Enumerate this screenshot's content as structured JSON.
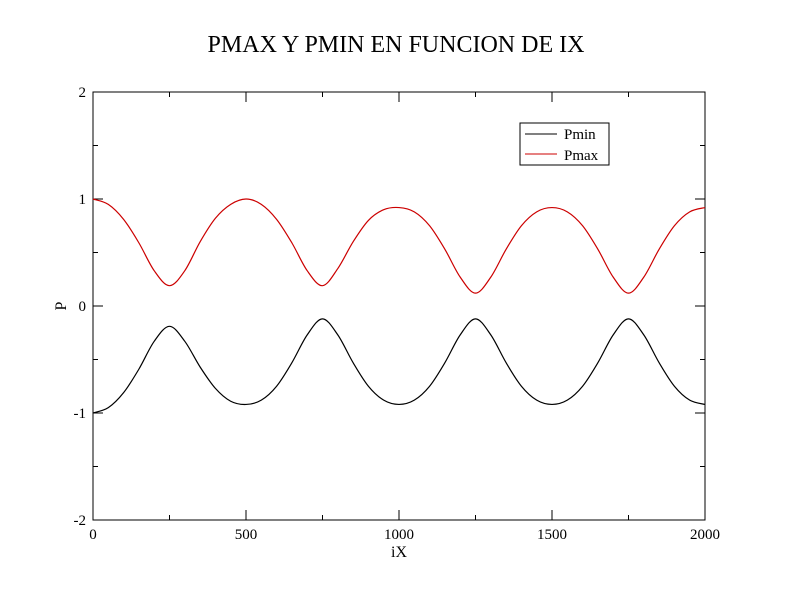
{
  "chart_data": {
    "type": "line",
    "title": "PMAX Y PMIN EN FUNCION DE IX",
    "xlabel": "iX",
    "ylabel": "P",
    "xlim": [
      0,
      2000
    ],
    "ylim": [
      -2,
      2
    ],
    "x_ticks": [
      0,
      500,
      1000,
      1500,
      2000
    ],
    "y_ticks": [
      -2,
      -1,
      0,
      1,
      2
    ],
    "x_tick_labels": [
      "0",
      "500",
      "1000",
      "1500",
      "2000"
    ],
    "y_tick_labels": [
      "-2",
      "-1",
      "0",
      "1",
      "2"
    ],
    "legend_position": "top-right",
    "grid": false,
    "series": [
      {
        "name": "Pmin",
        "color": "#000000",
        "x": [
          0,
          50,
          100,
          150,
          200,
          250,
          300,
          350,
          400,
          450,
          500,
          550,
          600,
          650,
          700,
          750,
          800,
          850,
          900,
          950,
          1000,
          1050,
          1100,
          1150,
          1200,
          1250,
          1300,
          1350,
          1400,
          1450,
          1500,
          1550,
          1600,
          1650,
          1700,
          1750,
          1800,
          1850,
          1900,
          1950,
          2000
        ],
        "values": [
          -1.0,
          -0.95,
          -0.81,
          -0.59,
          -0.33,
          -0.19,
          -0.33,
          -0.57,
          -0.77,
          -0.89,
          -0.92,
          -0.88,
          -0.75,
          -0.53,
          -0.27,
          -0.12,
          -0.27,
          -0.53,
          -0.75,
          -0.88,
          -0.92,
          -0.88,
          -0.75,
          -0.53,
          -0.27,
          -0.12,
          -0.27,
          -0.53,
          -0.75,
          -0.88,
          -0.92,
          -0.88,
          -0.75,
          -0.53,
          -0.27,
          -0.12,
          -0.27,
          -0.53,
          -0.75,
          -0.88,
          -0.92
        ]
      },
      {
        "name": "Pmax",
        "color": "#cc0000",
        "x": [
          0,
          50,
          100,
          150,
          200,
          250,
          300,
          350,
          400,
          450,
          500,
          550,
          600,
          650,
          700,
          750,
          800,
          850,
          900,
          950,
          1000,
          1050,
          1100,
          1150,
          1200,
          1250,
          1300,
          1350,
          1400,
          1450,
          1500,
          1550,
          1600,
          1650,
          1700,
          1750,
          1800,
          1850,
          1900,
          1950,
          2000
        ],
        "values": [
          1.0,
          0.95,
          0.81,
          0.59,
          0.33,
          0.19,
          0.33,
          0.6,
          0.82,
          0.95,
          1.0,
          0.95,
          0.81,
          0.59,
          0.33,
          0.19,
          0.35,
          0.6,
          0.8,
          0.9,
          0.92,
          0.88,
          0.75,
          0.53,
          0.27,
          0.12,
          0.27,
          0.53,
          0.75,
          0.88,
          0.92,
          0.88,
          0.75,
          0.53,
          0.27,
          0.12,
          0.27,
          0.53,
          0.75,
          0.88,
          0.92
        ]
      }
    ]
  }
}
